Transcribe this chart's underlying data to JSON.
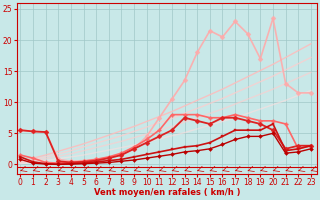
{
  "xlabel": "Vent moyen/en rafales ( km/h )",
  "background_color": "#c8e8e8",
  "grid_color": "#a0c8c8",
  "x_values": [
    0,
    1,
    2,
    3,
    4,
    5,
    6,
    7,
    8,
    9,
    10,
    11,
    12,
    13,
    14,
    15,
    16,
    17,
    18,
    19,
    20,
    21,
    22,
    23
  ],
  "ylim": [
    -1.5,
    26
  ],
  "xlim": [
    -0.3,
    23.5
  ],
  "lines": [
    {
      "y": [
        0.5,
        1.0,
        1.5,
        2.1,
        2.7,
        3.3,
        4.0,
        4.7,
        5.4,
        6.1,
        6.9,
        7.7,
        8.5,
        9.4,
        10.3,
        11.2,
        12.1,
        13.1,
        14.1,
        15.1,
        16.1,
        17.2,
        18.3,
        19.4
      ],
      "color": "#ffbbbb",
      "alpha": 0.85,
      "linewidth": 1.0,
      "marker": null,
      "markersize": 0
    },
    {
      "y": [
        0.3,
        0.7,
        1.2,
        1.7,
        2.2,
        2.8,
        3.4,
        4.0,
        4.6,
        5.3,
        6.0,
        6.7,
        7.4,
        8.2,
        9.0,
        9.8,
        10.6,
        11.5,
        12.4,
        13.3,
        14.2,
        15.2,
        16.2,
        17.2
      ],
      "color": "#ffcccc",
      "alpha": 0.75,
      "linewidth": 1.0,
      "marker": null,
      "markersize": 0
    },
    {
      "y": [
        0.2,
        0.5,
        0.9,
        1.3,
        1.7,
        2.2,
        2.7,
        3.2,
        3.7,
        4.3,
        4.9,
        5.5,
        6.1,
        6.8,
        7.5,
        8.2,
        8.9,
        9.7,
        10.5,
        11.3,
        12.1,
        13.0,
        13.9,
        14.8
      ],
      "color": "#ffcccc",
      "alpha": 0.65,
      "linewidth": 1.0,
      "marker": null,
      "markersize": 0
    },
    {
      "y": [
        0.1,
        0.3,
        0.6,
        0.9,
        1.2,
        1.5,
        1.9,
        2.3,
        2.7,
        3.1,
        3.6,
        4.1,
        4.6,
        5.1,
        5.7,
        6.3,
        6.9,
        7.5,
        8.2,
        8.9,
        9.6,
        10.3,
        11.1,
        11.9
      ],
      "color": "#ffdddd",
      "alpha": 0.6,
      "linewidth": 1.0,
      "marker": null,
      "markersize": 0
    },
    {
      "y": [
        5.5,
        5.3,
        5.2,
        0.8,
        0.5,
        0.6,
        0.8,
        1.0,
        1.5,
        2.5,
        4.5,
        7.5,
        10.5,
        13.5,
        18.0,
        21.5,
        20.5,
        23.0,
        21.0,
        17.0,
        23.5,
        13.0,
        11.5,
        11.5
      ],
      "color": "#ffaaaa",
      "alpha": 0.9,
      "linewidth": 1.2,
      "marker": "D",
      "markersize": 2.5
    },
    {
      "y": [
        1.5,
        1.0,
        0.3,
        0.2,
        0.3,
        0.5,
        0.8,
        1.2,
        1.8,
        2.8,
        4.0,
        5.5,
        8.0,
        8.0,
        8.0,
        7.5,
        7.5,
        8.0,
        7.5,
        7.0,
        7.0,
        6.5,
        2.5,
        3.0
      ],
      "color": "#ff6666",
      "alpha": 1.0,
      "linewidth": 1.2,
      "marker": "P",
      "markersize": 2.5
    },
    {
      "y": [
        5.5,
        5.3,
        5.2,
        0.5,
        0.3,
        0.4,
        0.6,
        1.0,
        1.5,
        2.5,
        3.5,
        4.5,
        5.5,
        7.5,
        7.0,
        6.5,
        7.5,
        7.5,
        7.0,
        6.5,
        5.5,
        2.5,
        3.0,
        3.0
      ],
      "color": "#dd2222",
      "alpha": 1.0,
      "linewidth": 1.3,
      "marker": "D",
      "markersize": 2.5
    },
    {
      "y": [
        1.2,
        0.4,
        0.1,
        0.0,
        0.1,
        0.2,
        0.4,
        0.6,
        0.8,
        1.2,
        1.6,
        2.0,
        2.4,
        2.8,
        3.0,
        3.5,
        4.5,
        5.5,
        5.5,
        5.5,
        6.5,
        2.2,
        2.5,
        3.0
      ],
      "color": "#cc1111",
      "alpha": 1.0,
      "linewidth": 1.2,
      "marker": "s",
      "markersize": 2
    },
    {
      "y": [
        0.8,
        0.2,
        0.05,
        0.0,
        0.05,
        0.1,
        0.2,
        0.3,
        0.5,
        0.7,
        1.0,
        1.3,
        1.6,
        2.0,
        2.2,
        2.5,
        3.2,
        4.0,
        4.5,
        4.5,
        5.0,
        1.8,
        2.0,
        2.5
      ],
      "color": "#bb0000",
      "alpha": 1.0,
      "linewidth": 1.0,
      "marker": "D",
      "markersize": 2
    }
  ],
  "yticks": [
    0,
    5,
    10,
    15,
    20,
    25
  ],
  "xticks": [
    0,
    1,
    2,
    3,
    4,
    5,
    6,
    7,
    8,
    9,
    10,
    11,
    12,
    13,
    14,
    15,
    16,
    17,
    18,
    19,
    20,
    21,
    22,
    23
  ]
}
